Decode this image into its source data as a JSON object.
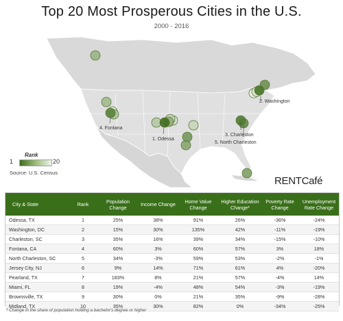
{
  "title": "Top 20 Most Prosperous Cities in the U.S.",
  "subtitle": "2000 - 2016",
  "legend": {
    "title": "Rank",
    "min_label": "1",
    "max_label": "20"
  },
  "source": "Source: U.S. Census",
  "brand": "RENTCafé",
  "colors": {
    "header_bg": "#3a6f1a",
    "marker_dark": "#3f6d1d",
    "marker_light": "#eef3e6"
  },
  "map_labels": [
    "2. Washington",
    "4. Fontana",
    "1. Odessa",
    "3. Charleston",
    "5. North Charleston"
  ],
  "table": {
    "headers": [
      "City & State",
      "Rank",
      "Population Change",
      "Income Change",
      "Home Value Change",
      "Higher Education Change*",
      "Poverty Rate Change",
      "Unemployment Rate Change"
    ],
    "rows": [
      [
        "Odessa, TX",
        "1",
        "25%",
        "38%",
        "91%",
        "26%",
        "-36%",
        "-24%"
      ],
      [
        "Washington, DC",
        "2",
        "15%",
        "30%",
        "135%",
        "42%",
        "-11%",
        "-19%"
      ],
      [
        "Charleston, SC",
        "3",
        "35%",
        "16%",
        "39%",
        "34%",
        "-15%",
        "-10%"
      ],
      [
        "Fontana, CA",
        "4",
        "60%",
        "3%",
        "60%",
        "57%",
        "3%",
        "18%"
      ],
      [
        "North Charleston, SC",
        "5",
        "34%",
        "-3%",
        "59%",
        "53%",
        "-2%",
        "-1%"
      ],
      [
        "Jersey City, NJ",
        "6",
        "9%",
        "14%",
        "71%",
        "61%",
        "4%",
        "-20%"
      ],
      [
        "Pearland, TX",
        "7",
        "183%",
        "8%",
        "21%",
        "57%",
        "-4%",
        "14%"
      ],
      [
        "Miami, FL",
        "8",
        "19%",
        "-4%",
        "48%",
        "54%",
        "-3%",
        "-19%"
      ],
      [
        "Brownsville, TX",
        "9",
        "30%",
        "0%",
        "21%",
        "35%",
        "-9%",
        "-28%"
      ],
      [
        "Midland, TX",
        "10",
        "35%",
        "30%",
        "82%",
        "0%",
        "-34%",
        "-25%"
      ]
    ]
  },
  "footnote": "* Change in the share of population holding a bachelor's degree or higher",
  "chart_data": {
    "type": "table",
    "title": "Top 20 Most Prosperous Cities in the U.S.",
    "subtitle": "2000 - 2016",
    "columns": [
      "City & State",
      "Rank",
      "Population Change",
      "Income Change",
      "Home Value Change",
      "Higher Education Change*",
      "Poverty Rate Change",
      "Unemployment Rate Change"
    ],
    "rows": [
      [
        "Odessa, TX",
        1,
        25,
        38,
        91,
        26,
        -36,
        -24
      ],
      [
        "Washington, DC",
        2,
        15,
        30,
        135,
        42,
        -11,
        -19
      ],
      [
        "Charleston, SC",
        3,
        35,
        16,
        39,
        34,
        -15,
        -10
      ],
      [
        "Fontana, CA",
        4,
        60,
        3,
        60,
        57,
        3,
        18
      ],
      [
        "North Charleston, SC",
        5,
        34,
        -3,
        59,
        53,
        -2,
        -1
      ],
      [
        "Jersey City, NJ",
        6,
        9,
        14,
        71,
        61,
        4,
        -20
      ],
      [
        "Pearland, TX",
        7,
        183,
        8,
        21,
        57,
        -4,
        14
      ],
      [
        "Miami, FL",
        8,
        19,
        -4,
        48,
        54,
        -3,
        -19
      ],
      [
        "Brownsville, TX",
        9,
        30,
        0,
        21,
        35,
        -9,
        -28
      ],
      [
        "Midland, TX",
        10,
        35,
        30,
        82,
        0,
        -34,
        -25
      ]
    ],
    "map_markers_rank_range": [
      1,
      20
    ]
  }
}
